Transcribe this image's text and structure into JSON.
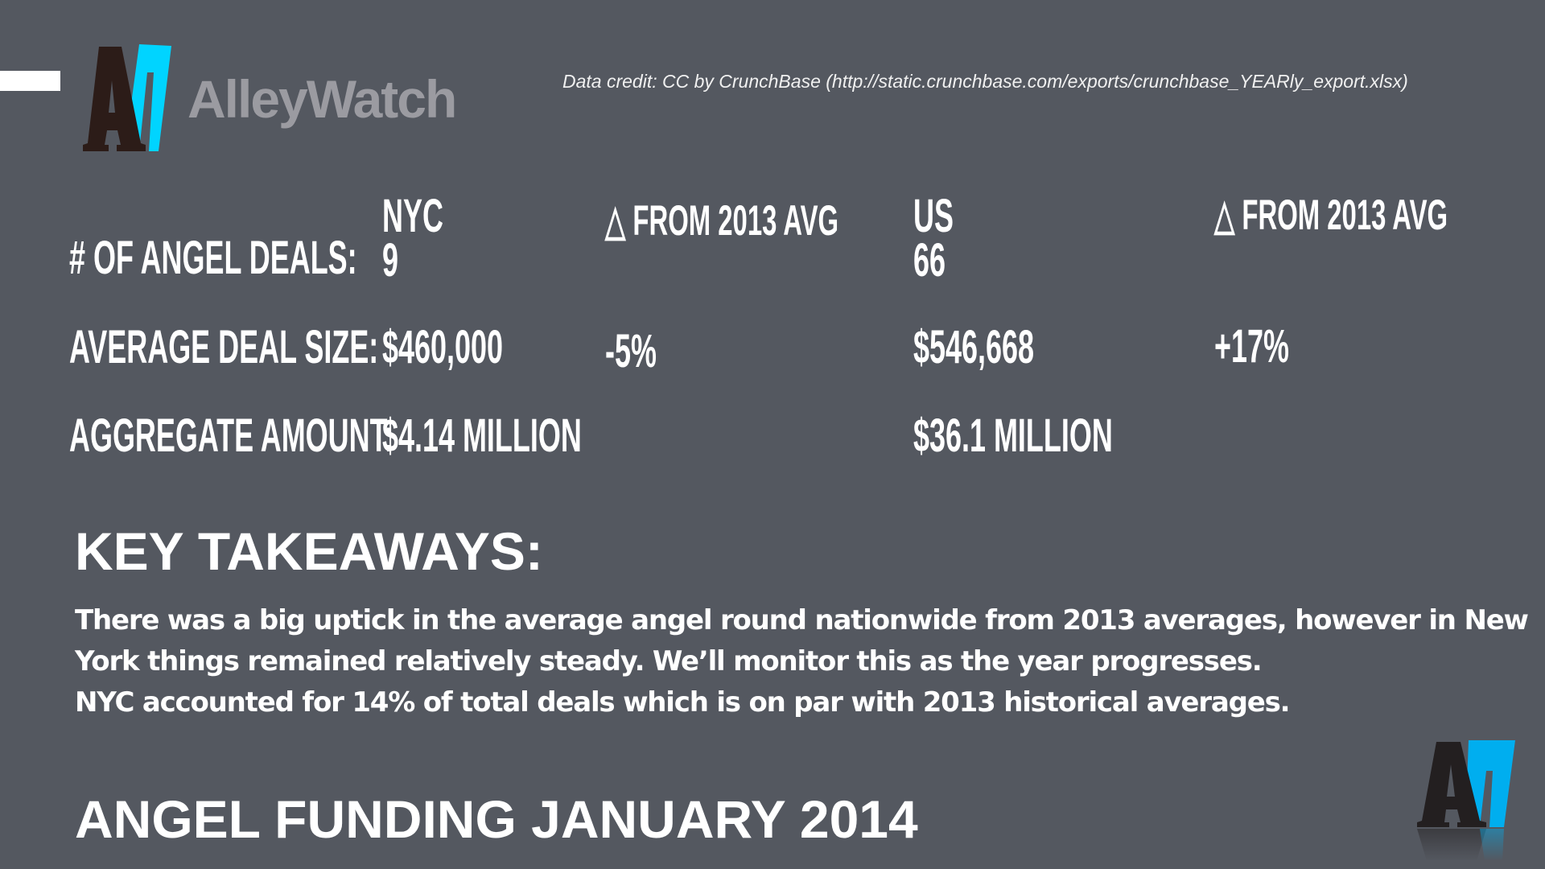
{
  "header": {
    "logo_text": "AlleyWatch",
    "credit": "Data credit: CC by CrunchBase (http://static.crunchbase.com/exports/crunchbase_YEARly_export.xlsx)"
  },
  "table": {
    "columns": {
      "nyc": "NYC",
      "nyc_delta": "△ FROM 2013 AVG",
      "us": "US",
      "us_delta": "△ FROM 2013 AVG"
    },
    "rows": [
      {
        "label": "# OF ANGEL DEALS:",
        "nyc": "9",
        "nyc_delta": "",
        "us": "66",
        "us_delta": ""
      },
      {
        "label": "AVERAGE DEAL SIZE:",
        "nyc": "$460,000",
        "nyc_delta": "-5%",
        "us": "$546,668",
        "us_delta": "+17%"
      },
      {
        "label": "AGGREGATE AMOUNT:",
        "nyc": "$4.14 MILLION",
        "nyc_delta": "",
        "us": "$36.1 MILLION",
        "us_delta": ""
      }
    ]
  },
  "takeaways": {
    "title": "KEY TAKEAWAYS:",
    "lines": [
      "There was a big uptick in the average angel round nationwide from 2013 averages, however in New",
      "York things remained relatively steady. We’ll monitor this as the year progresses.",
      "NYC accounted for 14% of total deals which is on par with 2013 historical averages."
    ]
  },
  "footer": {
    "title": "ANGEL FUNDING JANUARY 2014"
  },
  "colors": {
    "background": "#545860",
    "brand_blue": "#00d4ff",
    "brand_dark": "#2c1c18",
    "logo_gray": "#9b9ba1"
  }
}
